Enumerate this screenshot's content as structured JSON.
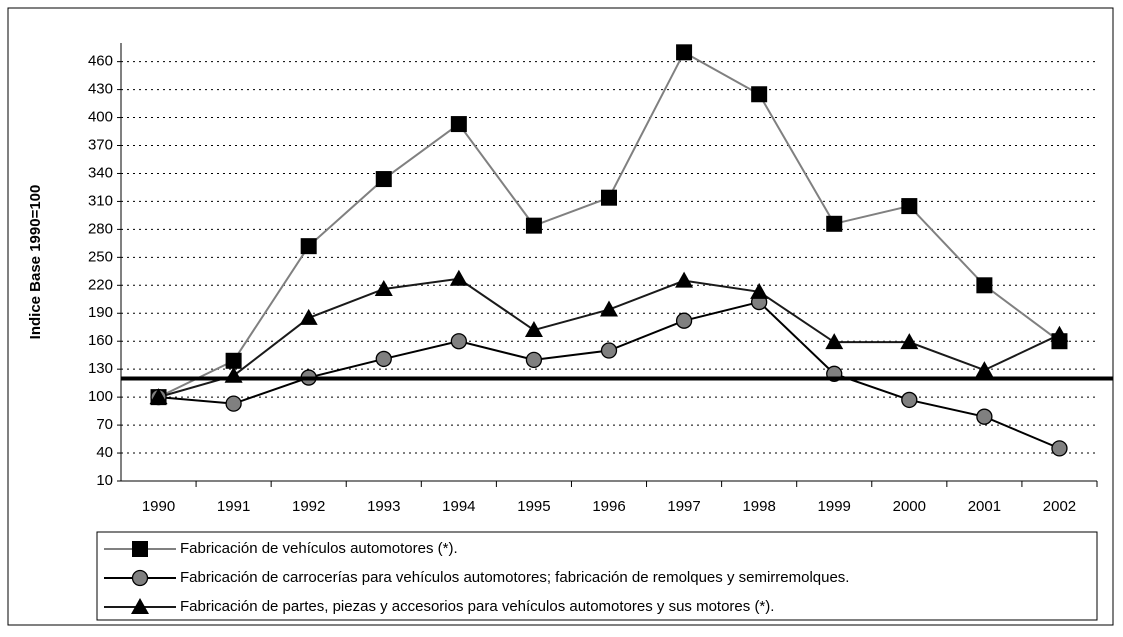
{
  "chart_data": {
    "type": "line",
    "y_axis_label": "Indice Base 1990=100",
    "categories": [
      "1990",
      "1991",
      "1992",
      "1993",
      "1994",
      "1995",
      "1996",
      "1997",
      "1998",
      "1999",
      "2000",
      "2001",
      "2002"
    ],
    "series": [
      {
        "name": "Fabricación de vehículos automotores (*).",
        "color": "#808080",
        "marker": "square",
        "marker_color": "#000000",
        "values": [
          100,
          139,
          262,
          334,
          393,
          284,
          314,
          470,
          425,
          286,
          305,
          220,
          160
        ]
      },
      {
        "name": "Fabricación de carrocerías para vehículos automotores; fabricación de remolques y semirremolques.",
        "color": "#000000",
        "marker": "circle",
        "marker_color": "#808080",
        "values": [
          100,
          93,
          121,
          141,
          160,
          140,
          150,
          182,
          202,
          125,
          97,
          79,
          45
        ]
      },
      {
        "name": "Fabricación de partes, piezas y accesorios para vehículos automotores y sus motores (*).",
        "color": "#1a1a1a",
        "marker": "triangle",
        "marker_color": "#000000",
        "values": [
          100,
          123,
          185,
          216,
          227,
          172,
          194,
          225,
          213,
          159,
          159,
          129,
          167
        ]
      }
    ],
    "ylim": [
      10,
      480
    ],
    "yticks": [
      10,
      40,
      70,
      100,
      130,
      160,
      190,
      220,
      250,
      280,
      310,
      340,
      370,
      400,
      430,
      460
    ],
    "grid": true,
    "reference_line": 120,
    "legend": "bottom"
  }
}
